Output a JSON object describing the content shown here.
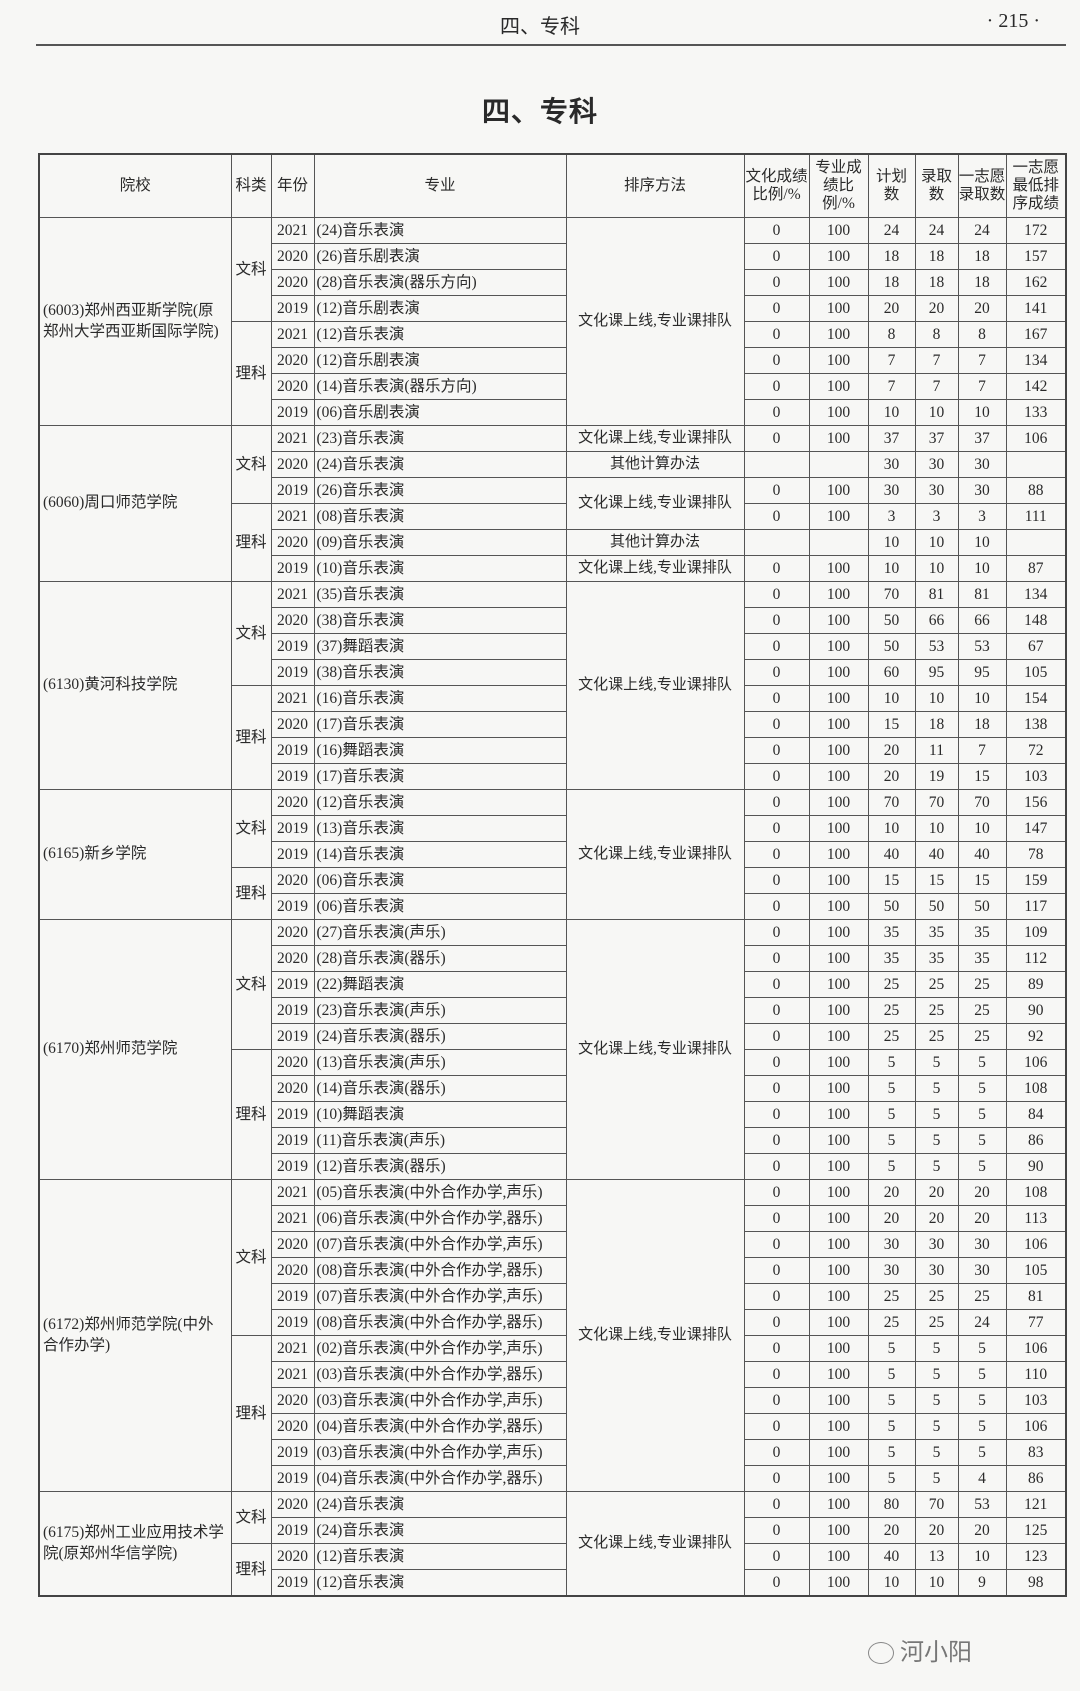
{
  "running_head": {
    "section": "四、专科",
    "page": "· 215 ·"
  },
  "title": "四、专科",
  "headers": [
    "院校",
    "科类",
    "年份",
    "专业",
    "排序方法",
    "文化成绩比例/%",
    "专业成绩比例/%",
    "计划数",
    "录取数",
    "一志愿录取数",
    "一志愿最低排序成绩"
  ],
  "schools": [
    {
      "name": "(6003)郑州西亚斯学院(原郑州大学西亚斯国际学院)",
      "categories": [
        {
          "name": "文科",
          "rows": [
            [
              "2021",
              "(24)音乐表演",
              "0",
              "100",
              "24",
              "24",
              "24",
              "172"
            ],
            [
              "2020",
              "(26)音乐剧表演",
              "0",
              "100",
              "18",
              "18",
              "18",
              "157"
            ],
            [
              "2020",
              "(28)音乐表演(器乐方向)",
              "0",
              "100",
              "18",
              "18",
              "18",
              "162"
            ],
            [
              "2019",
              "(12)音乐剧表演",
              "0",
              "100",
              "20",
              "20",
              "20",
              "141"
            ]
          ]
        },
        {
          "name": "理科",
          "rows": [
            [
              "2021",
              "(12)音乐表演",
              "0",
              "100",
              "8",
              "8",
              "8",
              "167"
            ],
            [
              "2020",
              "(12)音乐剧表演",
              "0",
              "100",
              "7",
              "7",
              "7",
              "134"
            ],
            [
              "2020",
              "(14)音乐表演(器乐方向)",
              "0",
              "100",
              "7",
              "7",
              "7",
              "142"
            ],
            [
              "2019",
              "(06)音乐剧表演",
              "0",
              "100",
              "10",
              "10",
              "10",
              "133"
            ]
          ]
        }
      ],
      "methods": [
        {
          "text": "文化课上线,专业课排队",
          "span": 8
        }
      ]
    },
    {
      "name": "(6060)周口师范学院",
      "categories": [
        {
          "name": "文科",
          "rows": [
            [
              "2021",
              "(23)音乐表演",
              "0",
              "100",
              "37",
              "37",
              "37",
              "106"
            ],
            [
              "2020",
              "(24)音乐表演",
              "",
              "",
              "30",
              "30",
              "30",
              ""
            ],
            [
              "2019",
              "(26)音乐表演",
              "0",
              "100",
              "30",
              "30",
              "30",
              "88"
            ]
          ]
        },
        {
          "name": "理科",
          "rows": [
            [
              "2021",
              "(08)音乐表演",
              "0",
              "100",
              "3",
              "3",
              "3",
              "111"
            ],
            [
              "2020",
              "(09)音乐表演",
              "",
              "",
              "10",
              "10",
              "10",
              ""
            ],
            [
              "2019",
              "(10)音乐表演",
              "0",
              "100",
              "10",
              "10",
              "10",
              "87"
            ]
          ]
        }
      ],
      "methods": [
        {
          "text": "文化课上线,专业课排队",
          "span": 1
        },
        {
          "text": "其他计算办法",
          "span": 1
        },
        {
          "text": "文化课上线,专业课排队",
          "span": 2
        },
        {
          "text": "其他计算办法",
          "span": 1
        },
        {
          "text": "文化课上线,专业课排队",
          "span": 1
        }
      ]
    },
    {
      "name": "(6130)黄河科技学院",
      "categories": [
        {
          "name": "文科",
          "rows": [
            [
              "2021",
              "(35)音乐表演",
              "0",
              "100",
              "70",
              "81",
              "81",
              "134"
            ],
            [
              "2020",
              "(38)音乐表演",
              "0",
              "100",
              "50",
              "66",
              "66",
              "148"
            ],
            [
              "2019",
              "(37)舞蹈表演",
              "0",
              "100",
              "50",
              "53",
              "53",
              "67"
            ],
            [
              "2019",
              "(38)音乐表演",
              "0",
              "100",
              "60",
              "95",
              "95",
              "105"
            ]
          ]
        },
        {
          "name": "理科",
          "rows": [
            [
              "2021",
              "(16)音乐表演",
              "0",
              "100",
              "10",
              "10",
              "10",
              "154"
            ],
            [
              "2020",
              "(17)音乐表演",
              "0",
              "100",
              "15",
              "18",
              "18",
              "138"
            ],
            [
              "2019",
              "(16)舞蹈表演",
              "0",
              "100",
              "20",
              "11",
              "7",
              "72"
            ],
            [
              "2019",
              "(17)音乐表演",
              "0",
              "100",
              "20",
              "19",
              "15",
              "103"
            ]
          ]
        }
      ],
      "methods": [
        {
          "text": "文化课上线,专业课排队",
          "span": 8
        }
      ]
    },
    {
      "name": "(6165)新乡学院",
      "categories": [
        {
          "name": "文科",
          "rows": [
            [
              "2020",
              "(12)音乐表演",
              "0",
              "100",
              "70",
              "70",
              "70",
              "156"
            ],
            [
              "2019",
              "(13)音乐表演",
              "0",
              "100",
              "10",
              "10",
              "10",
              "147"
            ],
            [
              "2019",
              "(14)音乐表演",
              "0",
              "100",
              "40",
              "40",
              "40",
              "78"
            ]
          ]
        },
        {
          "name": "理科",
          "rows": [
            [
              "2020",
              "(06)音乐表演",
              "0",
              "100",
              "15",
              "15",
              "15",
              "159"
            ],
            [
              "2019",
              "(06)音乐表演",
              "0",
              "100",
              "50",
              "50",
              "50",
              "117"
            ]
          ]
        }
      ],
      "methods": [
        {
          "text": "文化课上线,专业课排队",
          "span": 5
        }
      ]
    },
    {
      "name": "(6170)郑州师范学院",
      "categories": [
        {
          "name": "文科",
          "rows": [
            [
              "2020",
              "(27)音乐表演(声乐)",
              "0",
              "100",
              "35",
              "35",
              "35",
              "109"
            ],
            [
              "2020",
              "(28)音乐表演(器乐)",
              "0",
              "100",
              "35",
              "35",
              "35",
              "112"
            ],
            [
              "2019",
              "(22)舞蹈表演",
              "0",
              "100",
              "25",
              "25",
              "25",
              "89"
            ],
            [
              "2019",
              "(23)音乐表演(声乐)",
              "0",
              "100",
              "25",
              "25",
              "25",
              "90"
            ],
            [
              "2019",
              "(24)音乐表演(器乐)",
              "0",
              "100",
              "25",
              "25",
              "25",
              "92"
            ]
          ]
        },
        {
          "name": "理科",
          "rows": [
            [
              "2020",
              "(13)音乐表演(声乐)",
              "0",
              "100",
              "5",
              "5",
              "5",
              "106"
            ],
            [
              "2020",
              "(14)音乐表演(器乐)",
              "0",
              "100",
              "5",
              "5",
              "5",
              "108"
            ],
            [
              "2019",
              "(10)舞蹈表演",
              "0",
              "100",
              "5",
              "5",
              "5",
              "84"
            ],
            [
              "2019",
              "(11)音乐表演(声乐)",
              "0",
              "100",
              "5",
              "5",
              "5",
              "86"
            ],
            [
              "2019",
              "(12)音乐表演(器乐)",
              "0",
              "100",
              "5",
              "5",
              "5",
              "90"
            ]
          ]
        }
      ],
      "methods": [
        {
          "text": "文化课上线,专业课排队",
          "span": 10
        }
      ]
    },
    {
      "name": "(6172)郑州师范学院(中外合作办学)",
      "categories": [
        {
          "name": "文科",
          "rows": [
            [
              "2021",
              "(05)音乐表演(中外合作办学,声乐)",
              "0",
              "100",
              "20",
              "20",
              "20",
              "108"
            ],
            [
              "2021",
              "(06)音乐表演(中外合作办学,器乐)",
              "0",
              "100",
              "20",
              "20",
              "20",
              "113"
            ],
            [
              "2020",
              "(07)音乐表演(中外合作办学,声乐)",
              "0",
              "100",
              "30",
              "30",
              "30",
              "106"
            ],
            [
              "2020",
              "(08)音乐表演(中外合作办学,器乐)",
              "0",
              "100",
              "30",
              "30",
              "30",
              "105"
            ],
            [
              "2019",
              "(07)音乐表演(中外合作办学,声乐)",
              "0",
              "100",
              "25",
              "25",
              "25",
              "81"
            ],
            [
              "2019",
              "(08)音乐表演(中外合作办学,器乐)",
              "0",
              "100",
              "25",
              "25",
              "24",
              "77"
            ]
          ]
        },
        {
          "name": "理科",
          "rows": [
            [
              "2021",
              "(02)音乐表演(中外合作办学,声乐)",
              "0",
              "100",
              "5",
              "5",
              "5",
              "106"
            ],
            [
              "2021",
              "(03)音乐表演(中外合作办学,器乐)",
              "0",
              "100",
              "5",
              "5",
              "5",
              "110"
            ],
            [
              "2020",
              "(03)音乐表演(中外合作办学,声乐)",
              "0",
              "100",
              "5",
              "5",
              "5",
              "103"
            ],
            [
              "2020",
              "(04)音乐表演(中外合作办学,器乐)",
              "0",
              "100",
              "5",
              "5",
              "5",
              "106"
            ],
            [
              "2019",
              "(03)音乐表演(中外合作办学,声乐)",
              "0",
              "100",
              "5",
              "5",
              "5",
              "83"
            ],
            [
              "2019",
              "(04)音乐表演(中外合作办学,器乐)",
              "0",
              "100",
              "5",
              "5",
              "4",
              "86"
            ]
          ]
        }
      ],
      "methods": [
        {
          "text": "文化课上线,专业课排队",
          "span": 12
        }
      ]
    },
    {
      "name": "(6175)郑州工业应用技术学院(原郑州华信学院)",
      "categories": [
        {
          "name": "文科",
          "rows": [
            [
              "2020",
              "(24)音乐表演",
              "0",
              "100",
              "80",
              "70",
              "53",
              "121"
            ],
            [
              "2019",
              "(24)音乐表演",
              "0",
              "100",
              "20",
              "20",
              "20",
              "125"
            ]
          ]
        },
        {
          "name": "理科",
          "rows": [
            [
              "2020",
              "(12)音乐表演",
              "0",
              "100",
              "40",
              "13",
              "10",
              "123"
            ],
            [
              "2019",
              "(12)音乐表演",
              "0",
              "100",
              "10",
              "10",
              "9",
              "98"
            ]
          ]
        }
      ],
      "methods": [
        {
          "text": "文化课上线,专业课排队",
          "span": 4
        }
      ]
    }
  ],
  "watermark": {
    "icon": "wechat-icon",
    "text": "河小阳"
  }
}
